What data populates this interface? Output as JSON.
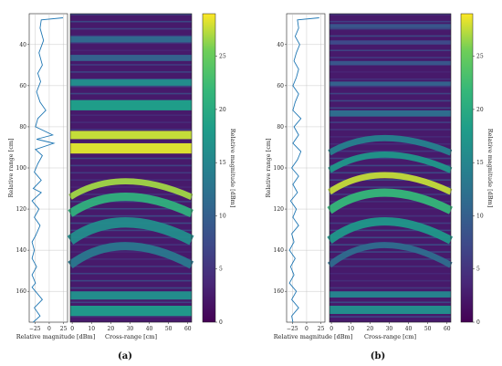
{
  "figure": {
    "panel_labels": [
      "(a)",
      "(b)"
    ]
  },
  "chart_data": [
    {
      "type": "line",
      "panel": "(a)",
      "role": "range-profile",
      "xlabel": "Relative magnitude [dBm]",
      "ylabel": "Relative range [cm]",
      "xlim": [
        -35,
        32
      ],
      "ylim": [
        175,
        25
      ],
      "x_ticks": [
        -25,
        0,
        25
      ],
      "y_ticks": [
        40,
        60,
        80,
        100,
        120,
        140,
        160
      ],
      "color": "#1f77b4",
      "points": [
        [
          24,
          27
        ],
        [
          -14,
          28
        ],
        [
          -16,
          32
        ],
        [
          -10,
          38
        ],
        [
          -18,
          44
        ],
        [
          -12,
          50
        ],
        [
          -20,
          54
        ],
        [
          -15,
          58
        ],
        [
          -22,
          63
        ],
        [
          -16,
          68
        ],
        [
          -6,
          72
        ],
        [
          -20,
          76
        ],
        [
          -24,
          80
        ],
        [
          6,
          84
        ],
        [
          -22,
          86
        ],
        [
          8,
          88
        ],
        [
          -24,
          91
        ],
        [
          -12,
          94
        ],
        [
          -20,
          98
        ],
        [
          -26,
          102
        ],
        [
          -14,
          106
        ],
        [
          -28,
          110
        ],
        [
          -14,
          112
        ],
        [
          -30,
          116
        ],
        [
          -18,
          120
        ],
        [
          -26,
          124
        ],
        [
          -16,
          128
        ],
        [
          -24,
          133
        ],
        [
          -30,
          136
        ],
        [
          -26,
          140
        ],
        [
          -30,
          144
        ],
        [
          -22,
          148
        ],
        [
          -30,
          152
        ],
        [
          -24,
          156
        ],
        [
          -30,
          158
        ],
        [
          -12,
          164
        ],
        [
          -26,
          168
        ],
        [
          -16,
          172
        ],
        [
          -28,
          175
        ]
      ]
    },
    {
      "type": "heatmap",
      "panel": "(a)",
      "xlabel": "Cross-range [cm]",
      "xlim": [
        -1,
        62
      ],
      "ylim": [
        175,
        25
      ],
      "x_ticks": [
        0,
        10,
        20,
        30,
        40,
        50,
        60
      ],
      "colorbar": {
        "label": "Relative magnitude [dBm]",
        "range": [
          0,
          29
        ],
        "ticks": [
          0,
          5,
          10,
          15,
          20,
          25
        ],
        "colormap": "viridis"
      },
      "bands": [
        {
          "range_cm": [
            88,
            93
          ],
          "level": 0.97
        },
        {
          "range_cm": [
            82,
            86
          ],
          "level": 0.95
        },
        {
          "range_cm": [
            67,
            72
          ],
          "level": 0.62
        },
        {
          "range_cm": [
            57,
            60
          ],
          "level": 0.55
        },
        {
          "range_cm": [
            45,
            48
          ],
          "level": 0.35
        },
        {
          "range_cm": [
            36,
            39
          ],
          "level": 0.38
        },
        {
          "range_cm": [
            105,
            108
          ],
          "level": 0.92,
          "arc": true
        },
        {
          "range_cm": [
            112,
            116
          ],
          "level": 0.72,
          "arc": true
        },
        {
          "range_cm": [
            124,
            129
          ],
          "level": 0.55,
          "arc": true
        },
        {
          "range_cm": [
            136,
            140
          ],
          "level": 0.45,
          "arc": true
        },
        {
          "range_cm": [
            160,
            164
          ],
          "level": 0.55
        },
        {
          "range_cm": [
            167,
            172
          ],
          "level": 0.6
        }
      ]
    },
    {
      "type": "line",
      "panel": "(b)",
      "role": "range-profile",
      "xlabel": "Relative magnitude [dBm]",
      "ylabel": "Relative range [cm]",
      "xlim": [
        -35,
        32
      ],
      "ylim": [
        175,
        25
      ],
      "x_ticks": [
        -25,
        0,
        25
      ],
      "y_ticks": [
        40,
        60,
        80,
        100,
        120,
        140,
        160
      ],
      "color": "#1f77b4",
      "points": [
        [
          22,
          27
        ],
        [
          -16,
          28
        ],
        [
          -14,
          32
        ],
        [
          -20,
          36
        ],
        [
          -12,
          40
        ],
        [
          -18,
          44
        ],
        [
          -22,
          48
        ],
        [
          -14,
          52
        ],
        [
          -18,
          56
        ],
        [
          -24,
          60
        ],
        [
          -14,
          64
        ],
        [
          -20,
          68
        ],
        [
          -24,
          72
        ],
        [
          -10,
          76
        ],
        [
          -22,
          80
        ],
        [
          -14,
          84
        ],
        [
          -24,
          88
        ],
        [
          -10,
          92
        ],
        [
          -16,
          96
        ],
        [
          -26,
          100
        ],
        [
          -14,
          104
        ],
        [
          -24,
          108
        ],
        [
          -16,
          112
        ],
        [
          -28,
          116
        ],
        [
          -18,
          120
        ],
        [
          -24,
          124
        ],
        [
          -14,
          128
        ],
        [
          -26,
          132
        ],
        [
          -22,
          136
        ],
        [
          -30,
          140
        ],
        [
          -20,
          144
        ],
        [
          -28,
          148
        ],
        [
          -22,
          152
        ],
        [
          -30,
          156
        ],
        [
          -18,
          160
        ],
        [
          -26,
          164
        ],
        [
          -14,
          168
        ],
        [
          -26,
          172
        ],
        [
          -24,
          175
        ]
      ]
    },
    {
      "type": "heatmap",
      "panel": "(b)",
      "xlabel": "Cross-range [cm]",
      "xlim": [
        -1,
        62
      ],
      "ylim": [
        175,
        25
      ],
      "x_ticks": [
        0,
        10,
        20,
        30,
        40,
        50,
        60
      ],
      "colorbar": {
        "label": "Relative magnitude [dBm]",
        "range": [
          0,
          29
        ],
        "ticks": [
          0,
          5,
          10,
          15,
          20,
          25
        ],
        "colormap": "viridis"
      },
      "bands": [
        {
          "range_cm": [
            30,
            32
          ],
          "level": 0.3
        },
        {
          "range_cm": [
            38,
            40
          ],
          "level": 0.25
        },
        {
          "range_cm": [
            48,
            50
          ],
          "level": 0.3
        },
        {
          "range_cm": [
            58,
            60
          ],
          "level": 0.35
        },
        {
          "range_cm": [
            72,
            75
          ],
          "level": 0.4
        },
        {
          "range_cm": [
            84,
            87
          ],
          "level": 0.5,
          "arc": true
        },
        {
          "range_cm": [
            92,
            95
          ],
          "level": 0.6,
          "arc": true
        },
        {
          "range_cm": [
            102,
            105
          ],
          "level": 0.95,
          "arc": true
        },
        {
          "range_cm": [
            110,
            114
          ],
          "level": 0.75,
          "arc": true
        },
        {
          "range_cm": [
            124,
            128
          ],
          "level": 0.6,
          "arc": true
        },
        {
          "range_cm": [
            136,
            139
          ],
          "level": 0.4,
          "arc": true
        },
        {
          "range_cm": [
            160,
            163
          ],
          "level": 0.5
        },
        {
          "range_cm": [
            167,
            171
          ],
          "level": 0.55
        }
      ]
    }
  ]
}
